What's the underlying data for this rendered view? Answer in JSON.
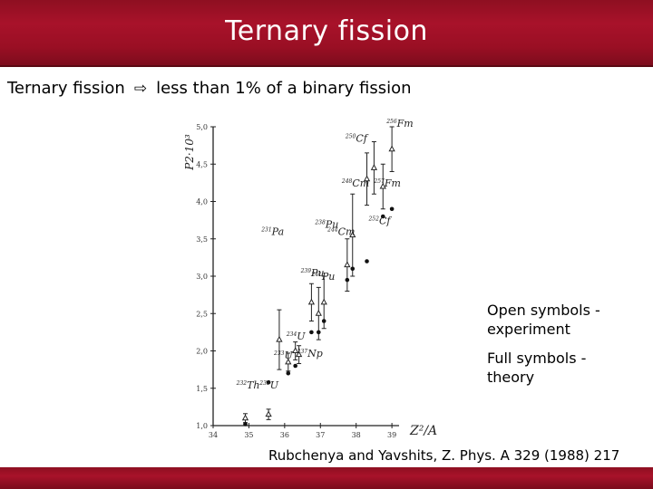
{
  "header": {
    "title": "Ternary fission"
  },
  "subtitle": {
    "lead": "Ternary fission",
    "arrow_icon": "⇨",
    "text": "less than 1% of a binary fission"
  },
  "notes": {
    "open_symbols": "Open symbols - experiment",
    "full_symbols": "Full symbols - theory"
  },
  "citation": "Rubchenya and Yavshits, Z. Phys. A 329 (1988) 217",
  "colors": {
    "title_bar": "#9a0f24",
    "title_text": "#ffffff"
  },
  "chart_data": {
    "type": "scatter",
    "ylabel": "P2·10³",
    "xlabel": "Z²/A",
    "xlim": [
      34,
      39.2
    ],
    "ylim": [
      1.0,
      5.0
    ],
    "x_ticks": [
      "34",
      "35",
      "36",
      "37",
      "38",
      "39"
    ],
    "y_ticks": [
      "1,0",
      "1,5",
      "2,0",
      "2,5",
      "3,0",
      "3,5",
      "4,0",
      "4,5",
      "5,0"
    ],
    "series": [
      {
        "marker": "open",
        "points": [
          {
            "label": "232Th",
            "x": 34.9,
            "y": 1.1,
            "err": 0.06
          },
          {
            "label": "233U",
            "x": 35.55,
            "y": 1.15,
            "err": 0.07
          },
          {
            "label": "231Pa",
            "x": 35.85,
            "y": 2.15,
            "err": 0.4
          },
          {
            "label": "233U",
            "x": 36.1,
            "y": 1.85,
            "err": 0.12
          },
          {
            "label": "234U",
            "x": 36.3,
            "y": 2.0,
            "err": 0.12
          },
          {
            "label": "237Np",
            "x": 36.4,
            "y": 1.95,
            "err": 0.12
          },
          {
            "label": "239Pu",
            "x": 36.75,
            "y": 2.65,
            "err": 0.25
          },
          {
            "label": "241Pu",
            "x": 36.95,
            "y": 2.5,
            "err": 0.35
          },
          {
            "label": "238Pu",
            "x": 37.1,
            "y": 2.65,
            "err": 0.35
          },
          {
            "label": "244Cm",
            "x": 37.75,
            "y": 3.15,
            "err": 0.35
          },
          {
            "label": "248Cm",
            "x": 37.9,
            "y": 3.55,
            "err": 0.55
          },
          {
            "label": "252Cf",
            "x": 38.3,
            "y": 4.3,
            "err": 0.35
          },
          {
            "label": "250Cf",
            "x": 38.5,
            "y": 4.45,
            "err": 0.35
          },
          {
            "label": "257Fm",
            "x": 38.75,
            "y": 4.2,
            "err": 0.3
          },
          {
            "label": "256Fm",
            "x": 39.0,
            "y": 4.7,
            "err": 0.3
          }
        ]
      },
      {
        "marker": "full",
        "points": [
          {
            "x": 34.9,
            "y": 1.02
          },
          {
            "x": 35.55,
            "y": 1.58
          },
          {
            "x": 36.1,
            "y": 1.7
          },
          {
            "x": 36.3,
            "y": 1.8
          },
          {
            "x": 36.75,
            "y": 2.25
          },
          {
            "x": 36.95,
            "y": 2.25
          },
          {
            "x": 37.1,
            "y": 2.4
          },
          {
            "x": 37.75,
            "y": 2.95
          },
          {
            "x": 37.9,
            "y": 3.1
          },
          {
            "x": 38.3,
            "y": 3.2
          },
          {
            "x": 38.75,
            "y": 3.8
          },
          {
            "x": 39.0,
            "y": 3.9
          }
        ]
      }
    ],
    "labels": [
      {
        "text": "232Th",
        "x": 34.65,
        "y": 1.5
      },
      {
        "text": "233U",
        "x": 35.3,
        "y": 1.5
      },
      {
        "text": "231Pa",
        "x": 35.35,
        "y": 3.55
      },
      {
        "text": "233U",
        "x": 35.7,
        "y": 1.9
      },
      {
        "text": "234U",
        "x": 36.05,
        "y": 2.15
      },
      {
        "text": "237Np",
        "x": 36.35,
        "y": 1.92
      },
      {
        "text": "239Pu",
        "x": 36.45,
        "y": 3.0
      },
      {
        "text": "241Pu",
        "x": 36.75,
        "y": 2.95
      },
      {
        "text": "238Pu",
        "x": 36.85,
        "y": 3.65
      },
      {
        "text": "244Cm",
        "x": 37.2,
        "y": 3.55
      },
      {
        "text": "248Cm",
        "x": 37.6,
        "y": 4.2
      },
      {
        "text": "250Cf",
        "x": 37.7,
        "y": 4.8
      },
      {
        "text": "252Cf",
        "x": 38.35,
        "y": 3.7
      },
      {
        "text": "257Fm",
        "x": 38.5,
        "y": 4.2
      },
      {
        "text": "256Fm",
        "x": 38.85,
        "y": 5.0
      }
    ]
  }
}
